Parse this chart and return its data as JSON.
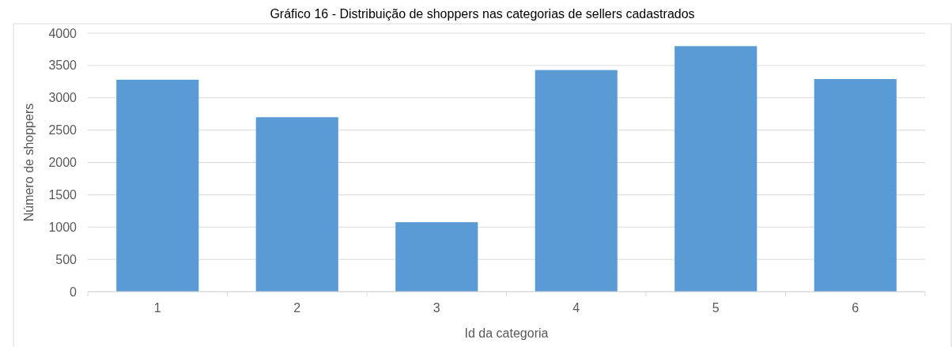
{
  "chart_data": {
    "type": "bar",
    "title": "Gráfico 16 - Distribuição de shoppers nas categorias de sellers cadastrados",
    "xlabel": "Id da categoria",
    "ylabel": "Número de shoppers",
    "categories": [
      "1",
      "2",
      "3",
      "4",
      "5",
      "6"
    ],
    "values": [
      3280,
      2700,
      1075,
      3430,
      3800,
      3290
    ],
    "color": "#5b9bd5",
    "ylim": [
      0,
      4000
    ],
    "yticks": [
      0,
      500,
      1000,
      1500,
      2000,
      2500,
      3000,
      3500,
      4000
    ],
    "grid": "y"
  }
}
